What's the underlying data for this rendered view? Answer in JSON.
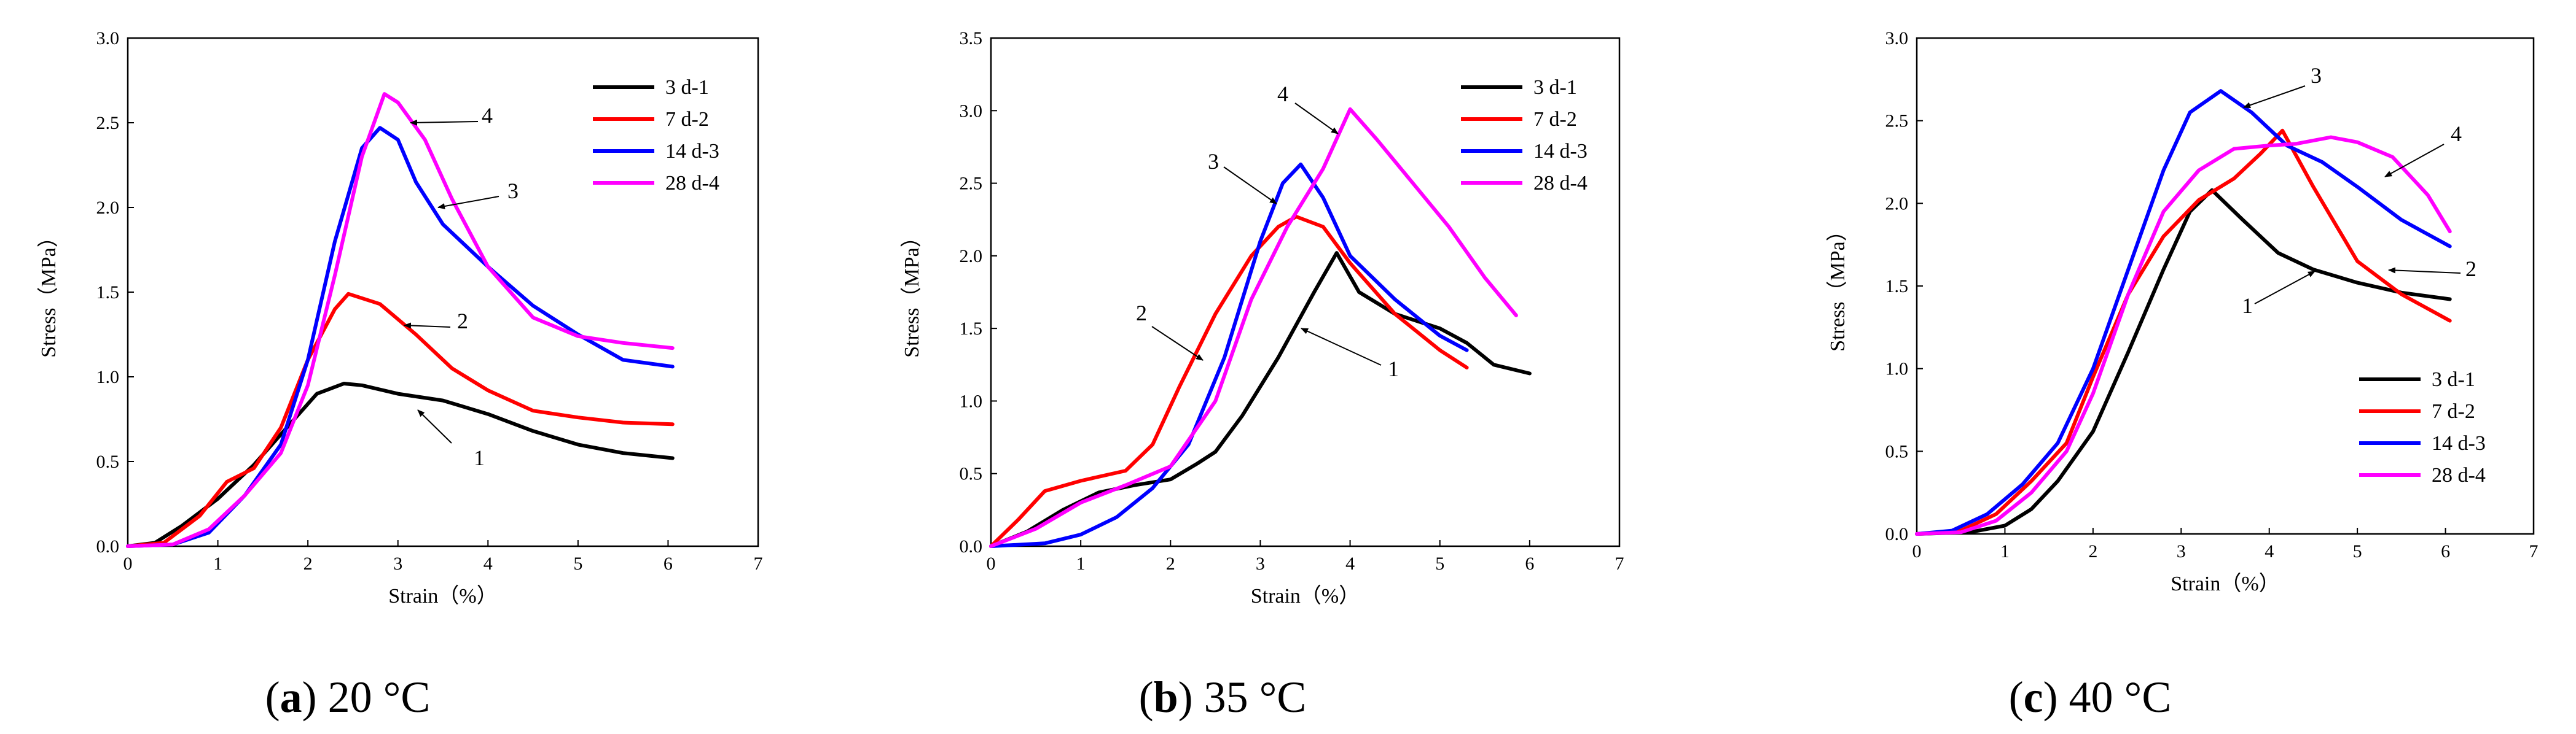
{
  "figure": {
    "panels": [
      {
        "caption_letter": "a",
        "caption_text": " 20 °C"
      },
      {
        "caption_letter": "b",
        "caption_text": " 35 °C"
      },
      {
        "caption_letter": "c",
        "caption_text": " 40 °C"
      }
    ]
  },
  "chart_data": [
    {
      "type": "line",
      "title": "(a) 20 °C",
      "xlabel": "Strain（%）",
      "ylabel": "Stress（MPa）",
      "xlim": [
        0,
        7
      ],
      "ylim": [
        0,
        3.0
      ],
      "xticks": [
        "0",
        "1",
        "2",
        "3",
        "4",
        "5",
        "6",
        "7"
      ],
      "yticks": [
        "0.0",
        "0.5",
        "1.0",
        "1.5",
        "2.0",
        "2.5",
        "3.0"
      ],
      "legend_position": "top-right",
      "series": [
        {
          "name": "3 d-1",
          "color": "#000000",
          "x": [
            0,
            0.3,
            0.6,
            1.0,
            1.4,
            1.8,
            2.1,
            2.4,
            2.6,
            3.0,
            3.5,
            4.0,
            4.5,
            5.0,
            5.5,
            6.05
          ],
          "y": [
            0,
            0.02,
            0.12,
            0.28,
            0.48,
            0.72,
            0.9,
            0.96,
            0.95,
            0.9,
            0.86,
            0.78,
            0.68,
            0.6,
            0.55,
            0.52
          ]
        },
        {
          "name": "7 d-2",
          "color": "#ff0000",
          "x": [
            0,
            0.4,
            0.8,
            1.1,
            1.4,
            1.7,
            2.0,
            2.3,
            2.45,
            2.8,
            3.2,
            3.6,
            4.0,
            4.5,
            5.0,
            5.5,
            6.05
          ],
          "y": [
            0,
            0.02,
            0.18,
            0.38,
            0.46,
            0.7,
            1.1,
            1.4,
            1.49,
            1.43,
            1.25,
            1.05,
            0.92,
            0.8,
            0.76,
            0.73,
            0.72
          ]
        },
        {
          "name": "14 d-3",
          "color": "#0000ff",
          "x": [
            0,
            0.5,
            0.9,
            1.3,
            1.7,
            2.0,
            2.3,
            2.6,
            2.8,
            3.0,
            3.2,
            3.5,
            4.0,
            4.5,
            5.0,
            5.5,
            6.05
          ],
          "y": [
            0,
            0.01,
            0.08,
            0.3,
            0.6,
            1.1,
            1.8,
            2.35,
            2.47,
            2.4,
            2.15,
            1.9,
            1.65,
            1.42,
            1.25,
            1.1,
            1.06
          ]
        },
        {
          "name": "28 d-4",
          "color": "#ff00ff",
          "x": [
            0,
            0.5,
            0.9,
            1.3,
            1.7,
            2.0,
            2.3,
            2.6,
            2.85,
            3.0,
            3.3,
            3.6,
            4.0,
            4.5,
            5.0,
            5.5,
            6.05
          ],
          "y": [
            0,
            0.01,
            0.1,
            0.3,
            0.55,
            0.95,
            1.6,
            2.3,
            2.67,
            2.62,
            2.4,
            2.05,
            1.65,
            1.35,
            1.24,
            1.2,
            1.17
          ]
        }
      ],
      "annotations": [
        "1",
        "2",
        "3",
        "4"
      ]
    },
    {
      "type": "line",
      "title": "(b) 35 °C",
      "xlabel": "Strain（%）",
      "ylabel": "Stress（MPa）",
      "xlim": [
        0,
        7
      ],
      "ylim": [
        0,
        3.5
      ],
      "xticks": [
        "0",
        "1",
        "2",
        "3",
        "4",
        "5",
        "6",
        "7"
      ],
      "yticks": [
        "0.0",
        "0.5",
        "1.0",
        "1.5",
        "2.0",
        "2.5",
        "3.0",
        "3.5"
      ],
      "legend_position": "top-right",
      "series": [
        {
          "name": "3 d-1",
          "color": "#000000",
          "x": [
            0,
            0.4,
            0.8,
            1.2,
            1.6,
            2.0,
            2.3,
            2.5,
            2.8,
            3.2,
            3.6,
            3.85,
            4.1,
            4.5,
            5.0,
            5.3,
            5.6,
            6.0
          ],
          "y": [
            0,
            0.1,
            0.25,
            0.37,
            0.42,
            0.46,
            0.57,
            0.65,
            0.9,
            1.3,
            1.75,
            2.02,
            1.75,
            1.6,
            1.5,
            1.4,
            1.25,
            1.19
          ]
        },
        {
          "name": "7 d-2",
          "color": "#ff0000",
          "x": [
            0,
            0.3,
            0.6,
            1.0,
            1.5,
            1.8,
            2.1,
            2.5,
            2.9,
            3.2,
            3.4,
            3.7,
            4.0,
            4.5,
            5.0,
            5.3
          ],
          "y": [
            0,
            0.18,
            0.38,
            0.45,
            0.52,
            0.7,
            1.1,
            1.6,
            2.0,
            2.2,
            2.27,
            2.2,
            1.95,
            1.6,
            1.35,
            1.23
          ]
        },
        {
          "name": "14 d-3",
          "color": "#0000ff",
          "x": [
            0,
            0.6,
            1.0,
            1.4,
            1.8,
            2.2,
            2.6,
            3.0,
            3.25,
            3.45,
            3.7,
            4.0,
            4.5,
            5.0,
            5.3
          ],
          "y": [
            0,
            0.02,
            0.08,
            0.2,
            0.4,
            0.7,
            1.3,
            2.1,
            2.5,
            2.63,
            2.4,
            2.0,
            1.7,
            1.45,
            1.35
          ]
        },
        {
          "name": "28 d-4",
          "color": "#ff00ff",
          "x": [
            0,
            0.5,
            1.0,
            1.5,
            2.0,
            2.5,
            2.9,
            3.3,
            3.7,
            4.0,
            4.3,
            4.7,
            5.1,
            5.5,
            5.85
          ],
          "y": [
            0,
            0.12,
            0.3,
            0.42,
            0.55,
            1.0,
            1.7,
            2.2,
            2.6,
            3.01,
            2.8,
            2.5,
            2.2,
            1.85,
            1.59
          ]
        }
      ],
      "annotations": [
        "1",
        "2",
        "3",
        "4"
      ]
    },
    {
      "type": "line",
      "title": "(c) 40 °C",
      "xlabel": "Strain（%）",
      "ylabel": "Stress（MPa）",
      "xlim": [
        0,
        7
      ],
      "ylim": [
        0,
        3.0
      ],
      "xticks": [
        "0",
        "1",
        "2",
        "3",
        "4",
        "5",
        "6",
        "7"
      ],
      "yticks": [
        "0.0",
        "0.5",
        "1.0",
        "1.5",
        "2.0",
        "2.5",
        "3.0"
      ],
      "legend_position": "bottom-right",
      "series": [
        {
          "name": "3 d-1",
          "color": "#000000",
          "x": [
            0,
            0.6,
            1.0,
            1.3,
            1.6,
            2.0,
            2.4,
            2.8,
            3.1,
            3.35,
            3.7,
            4.1,
            4.5,
            5.0,
            5.5,
            6.05
          ],
          "y": [
            0,
            0.01,
            0.05,
            0.15,
            0.32,
            0.62,
            1.1,
            1.6,
            1.95,
            2.08,
            1.9,
            1.7,
            1.6,
            1.52,
            1.46,
            1.42
          ]
        },
        {
          "name": "7 d-2",
          "color": "#ff0000",
          "x": [
            0,
            0.5,
            0.9,
            1.3,
            1.7,
            2.0,
            2.4,
            2.8,
            3.2,
            3.6,
            3.9,
            4.15,
            4.5,
            5.0,
            5.5,
            6.05
          ],
          "y": [
            0,
            0.02,
            0.12,
            0.32,
            0.55,
            0.95,
            1.45,
            1.8,
            2.02,
            2.15,
            2.3,
            2.44,
            2.1,
            1.65,
            1.45,
            1.29
          ]
        },
        {
          "name": "14 d-3",
          "color": "#0000ff",
          "x": [
            0,
            0.4,
            0.8,
            1.2,
            1.6,
            2.0,
            2.4,
            2.8,
            3.1,
            3.45,
            3.8,
            4.2,
            4.6,
            5.0,
            5.5,
            6.05
          ],
          "y": [
            0,
            0.02,
            0.12,
            0.3,
            0.55,
            1.0,
            1.6,
            2.2,
            2.55,
            2.68,
            2.55,
            2.35,
            2.25,
            2.1,
            1.9,
            1.74
          ]
        },
        {
          "name": "28 d-4",
          "color": "#ff00ff",
          "x": [
            0,
            0.5,
            0.9,
            1.3,
            1.7,
            2.0,
            2.4,
            2.8,
            3.2,
            3.6,
            4.0,
            4.3,
            4.7,
            5.0,
            5.4,
            5.8,
            6.05
          ],
          "y": [
            0,
            0.01,
            0.08,
            0.25,
            0.5,
            0.85,
            1.45,
            1.95,
            2.2,
            2.33,
            2.35,
            2.36,
            2.4,
            2.37,
            2.28,
            2.05,
            1.83
          ]
        }
      ],
      "annotations": [
        "1",
        "2",
        "3",
        "4"
      ]
    }
  ]
}
